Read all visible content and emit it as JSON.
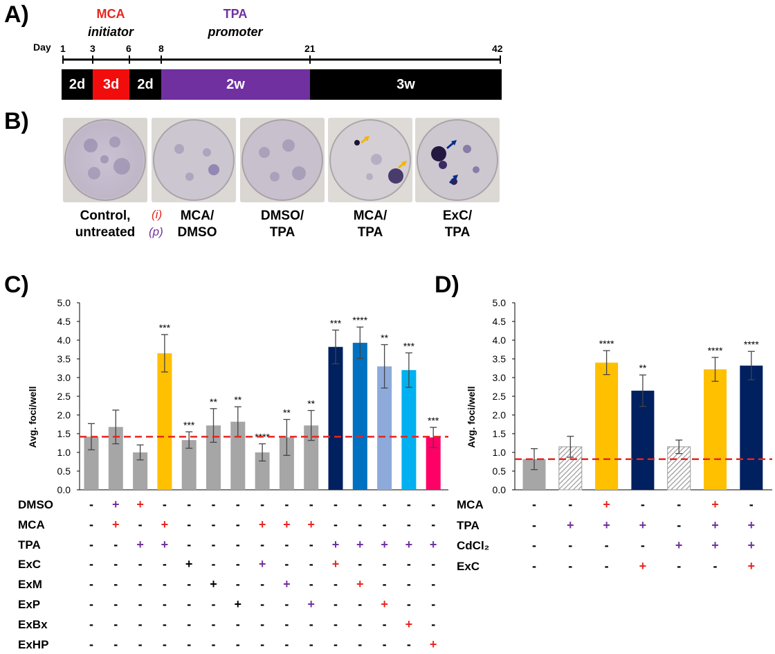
{
  "panels": {
    "a": {
      "letter": "A)"
    },
    "b": {
      "letter": "B)"
    },
    "c": {
      "letter": "C)"
    },
    "d": {
      "letter": "D)"
    }
  },
  "timeline": {
    "day_label": "Day",
    "mca_title": "MCA",
    "mca_sub": "initiator",
    "tpa_title": "TPA",
    "tpa_sub": "promoter",
    "colors": {
      "mca": "#e8251f",
      "tpa": "#7030a0",
      "black": "#000000"
    },
    "ticks": [
      "1",
      "3",
      "6",
      "8",
      "21",
      "42"
    ],
    "segments": [
      "2d",
      "3d",
      "2d",
      "2w",
      "3w"
    ]
  },
  "photos": {
    "labels": [
      {
        "line1": "Control,",
        "line2": "untreated"
      },
      {
        "line1": "MCA/",
        "line2": "DMSO"
      },
      {
        "line1": "DMSO/",
        "line2": "TPA"
      },
      {
        "line1": "MCA/",
        "line2": "TPA"
      },
      {
        "line1": "ExC/",
        "line2": "TPA"
      }
    ],
    "legend_i": "(i)",
    "legend_p": "(p)"
  },
  "chart_data": [
    {
      "type": "bar",
      "panel": "C",
      "ylabel": "Avg. foci/well",
      "ylim": [
        0,
        5
      ],
      "yticks": [
        "0.0",
        "0.5",
        "1.0",
        "1.5",
        "2.0",
        "2.5",
        "3.0",
        "3.5",
        "4.0",
        "4.5",
        "5.0"
      ],
      "reference_line": 1.42,
      "values": [
        1.42,
        1.68,
        1.0,
        3.65,
        1.33,
        1.72,
        1.82,
        1.0,
        1.4,
        1.72,
        3.82,
        3.93,
        3.3,
        3.2,
        1.4
      ],
      "errors": [
        0.35,
        0.45,
        0.2,
        0.5,
        0.22,
        0.45,
        0.4,
        0.23,
        0.48,
        0.4,
        0.45,
        0.42,
        0.58,
        0.46,
        0.27
      ],
      "significance": [
        "",
        "",
        "",
        "***",
        "***",
        "**",
        "**",
        "****",
        "**",
        "**",
        "***",
        "****",
        "**",
        "***",
        "***"
      ],
      "colors": [
        "#a6a6a6",
        "#a6a6a6",
        "#a6a6a6",
        "#ffc000",
        "#a6a6a6",
        "#a6a6a6",
        "#a6a6a6",
        "#a6a6a6",
        "#a6a6a6",
        "#a6a6a6",
        "#002060",
        "#0070c0",
        "#8eaadb",
        "#00b0f0",
        "#ff0066"
      ],
      "row_labels": [
        "DMSO",
        "MCA",
        "TPA",
        "ExC",
        "ExM",
        "ExP",
        "ExBx",
        "ExHP"
      ],
      "rows": [
        [
          "-",
          "+",
          "+",
          "-",
          "-",
          "-",
          "-",
          "-",
          "-",
          "-",
          "-",
          "-",
          "-",
          "-",
          "-"
        ],
        [
          "-",
          "+",
          "-",
          "+",
          "-",
          "-",
          "-",
          "+",
          "+",
          "+",
          "-",
          "-",
          "-",
          "-",
          "-"
        ],
        [
          "-",
          "-",
          "+",
          "+",
          "-",
          "-",
          "-",
          "-",
          "-",
          "-",
          "+",
          "+",
          "+",
          "+",
          "+"
        ],
        [
          "-",
          "-",
          "-",
          "-",
          "+",
          "-",
          "-",
          "+",
          "-",
          "-",
          "+",
          "-",
          "-",
          "-",
          "-"
        ],
        [
          "-",
          "-",
          "-",
          "-",
          "-",
          "+",
          "-",
          "-",
          "+",
          "-",
          "-",
          "+",
          "-",
          "-",
          "-"
        ],
        [
          "-",
          "-",
          "-",
          "-",
          "-",
          "-",
          "+",
          "-",
          "-",
          "+",
          "-",
          "-",
          "+",
          "-",
          "-"
        ],
        [
          "-",
          "-",
          "-",
          "-",
          "-",
          "-",
          "-",
          "-",
          "-",
          "-",
          "-",
          "-",
          "-",
          "+",
          "-"
        ],
        [
          "-",
          "-",
          "-",
          "-",
          "-",
          "-",
          "-",
          "-",
          "-",
          "-",
          "-",
          "-",
          "-",
          "-",
          "+"
        ]
      ],
      "row_colors": [
        [
          "",
          "#7030a0",
          "#e8251f",
          "",
          "",
          "",
          "",
          "",
          "",
          "",
          "",
          "",
          "",
          "",
          ""
        ],
        [
          "",
          "#e8251f",
          "",
          "#e8251f",
          "",
          "",
          "",
          "#e8251f",
          "#e8251f",
          "#e8251f",
          "",
          "",
          "",
          "",
          ""
        ],
        [
          "",
          "",
          "#7030a0",
          "#7030a0",
          "",
          "",
          "",
          "",
          "",
          "",
          "#7030a0",
          "#7030a0",
          "#7030a0",
          "#7030a0",
          "#7030a0"
        ],
        [
          "",
          "",
          "",
          "",
          "#000000",
          "",
          "",
          "#7030a0",
          "",
          "",
          "#e8251f",
          "",
          "",
          "",
          ""
        ],
        [
          "",
          "",
          "",
          "",
          "",
          "#000000",
          "",
          "",
          "#7030a0",
          "",
          "",
          "#e8251f",
          "",
          "",
          ""
        ],
        [
          "",
          "",
          "",
          "",
          "",
          "",
          "#000000",
          "",
          "",
          "#7030a0",
          "",
          "",
          "#e8251f",
          "",
          ""
        ],
        [
          "",
          "",
          "",
          "",
          "",
          "",
          "",
          "",
          "",
          "",
          "",
          "",
          "",
          "#e8251f",
          ""
        ],
        [
          "",
          "",
          "",
          "",
          "",
          "",
          "",
          "",
          "",
          "",
          "",
          "",
          "",
          "",
          "#e8251f"
        ]
      ]
    },
    {
      "type": "bar",
      "panel": "D",
      "ylabel": "Avg. foci/well",
      "ylim": [
        0,
        5
      ],
      "yticks": [
        "0.0",
        "0.5",
        "1.0",
        "1.5",
        "2.0",
        "2.5",
        "3.0",
        "3.5",
        "4.0",
        "4.5",
        "5.0"
      ],
      "reference_line": 0.82,
      "values": [
        0.82,
        1.15,
        3.4,
        2.65,
        1.15,
        3.22,
        3.32
      ],
      "errors": [
        0.28,
        0.28,
        0.32,
        0.42,
        0.18,
        0.32,
        0.38
      ],
      "significance": [
        "",
        "",
        "****",
        "**",
        "",
        "****",
        "****"
      ],
      "colors": [
        "#a6a6a6",
        "hatch",
        "#ffc000",
        "#002060",
        "hatch",
        "#ffc000",
        "#002060"
      ],
      "row_labels": [
        "MCA",
        "TPA",
        "CdCl₂",
        "ExC"
      ],
      "rows": [
        [
          "-",
          "-",
          "+",
          "-",
          "-",
          "+",
          "-"
        ],
        [
          "-",
          "+",
          "+",
          "+",
          "-",
          "+",
          "+"
        ],
        [
          "-",
          "-",
          "-",
          "-",
          "+",
          "+",
          "+"
        ],
        [
          "-",
          "-",
          "-",
          "+",
          "-",
          "-",
          "+"
        ]
      ],
      "row_colors": [
        [
          "",
          "",
          "#e8251f",
          "",
          "",
          "#e8251f",
          ""
        ],
        [
          "",
          "#7030a0",
          "#7030a0",
          "#7030a0",
          "",
          "#7030a0",
          "#7030a0"
        ],
        [
          "",
          "",
          "",
          "",
          "#7030a0",
          "#7030a0",
          "#7030a0"
        ],
        [
          "",
          "",
          "",
          "#e8251f",
          "",
          "",
          "#e8251f"
        ]
      ]
    }
  ]
}
